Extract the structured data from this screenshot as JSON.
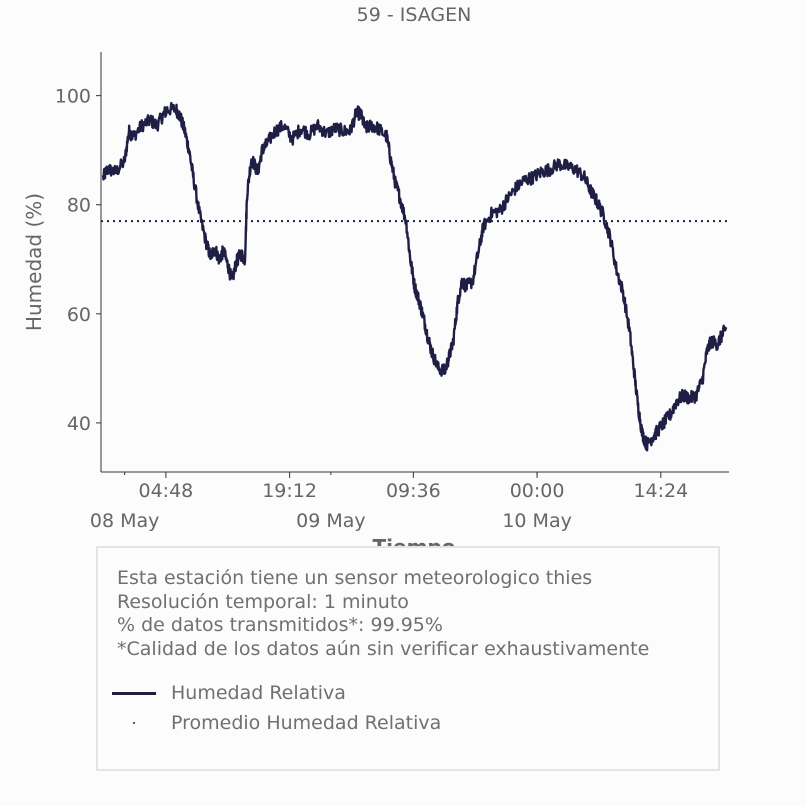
{
  "chart_data": {
    "type": "line",
    "title": "59 - ISAGEN",
    "xlabel": "Tiempo",
    "ylabel": "Humedad (%)",
    "xlim": [
      "2024-05-08T00:00",
      "2024-05-10T23:59"
    ],
    "ylim": [
      31,
      108
    ],
    "grid": false,
    "x_ticks": [
      {
        "t": "2024-05-08T04:48",
        "label": "04:48"
      },
      {
        "t": "2024-05-08T19:12",
        "label": "19:12"
      },
      {
        "t": "2024-05-09T09:36",
        "label": "09:36"
      },
      {
        "t": "2024-05-10T00:00",
        "label": "00:00"
      },
      {
        "t": "2024-05-10T14:24",
        "label": "14:24"
      }
    ],
    "date_labels": [
      {
        "t": "2024-05-08T00:00",
        "label": "08 May"
      },
      {
        "t": "2024-05-09T00:00",
        "label": "09 May"
      },
      {
        "t": "2024-05-10T00:00",
        "label": "10 May"
      }
    ],
    "y_ticks": [
      40,
      60,
      80,
      100
    ],
    "series": [
      {
        "name": "Humedad Relativa",
        "color": "#1f1f45",
        "style": "solid",
        "points": [
          [
            "2024-05-07T21:30",
            85
          ],
          [
            "2024-05-07T22:00",
            86.5
          ],
          [
            "2024-05-07T23:00",
            86
          ],
          [
            "2024-05-08T00:00",
            88
          ],
          [
            "2024-05-08T00:30",
            93.5
          ],
          [
            "2024-05-08T01:00",
            92.5
          ],
          [
            "2024-05-08T02:00",
            94.5
          ],
          [
            "2024-05-08T03:00",
            95.5
          ],
          [
            "2024-05-08T03:45",
            94.5
          ],
          [
            "2024-05-08T04:30",
            96.5
          ],
          [
            "2024-05-08T05:00",
            97.5
          ],
          [
            "2024-05-08T06:00",
            97.5
          ],
          [
            "2024-05-08T06:30",
            96
          ],
          [
            "2024-05-08T07:00",
            93.5
          ],
          [
            "2024-05-08T07:30",
            90
          ],
          [
            "2024-05-08T08:00",
            85
          ],
          [
            "2024-05-08T08:45",
            78
          ],
          [
            "2024-05-08T09:30",
            73
          ],
          [
            "2024-05-08T10:00",
            70.5
          ],
          [
            "2024-05-08T10:30",
            72
          ],
          [
            "2024-05-08T11:00",
            70
          ],
          [
            "2024-05-08T11:30",
            71.5
          ],
          [
            "2024-05-08T12:00",
            69
          ],
          [
            "2024-05-08T12:30",
            66
          ],
          [
            "2024-05-08T13:00",
            69.5
          ],
          [
            "2024-05-08T13:30",
            71
          ],
          [
            "2024-05-08T14:00",
            70
          ],
          [
            "2024-05-08T14:15",
            82
          ],
          [
            "2024-05-08T14:45",
            88.5
          ],
          [
            "2024-05-08T15:30",
            86
          ],
          [
            "2024-05-08T16:00",
            90
          ],
          [
            "2024-05-08T16:30",
            91
          ],
          [
            "2024-05-08T17:30",
            93.5
          ],
          [
            "2024-05-08T18:30",
            94.5
          ],
          [
            "2024-05-08T19:30",
            92
          ],
          [
            "2024-05-08T20:30",
            94
          ],
          [
            "2024-05-08T21:30",
            93
          ],
          [
            "2024-05-08T22:30",
            94.5
          ],
          [
            "2024-05-08T23:30",
            93
          ],
          [
            "2024-05-09T00:30",
            94
          ],
          [
            "2024-05-09T01:30",
            93.5
          ],
          [
            "2024-05-09T02:15",
            93.5
          ],
          [
            "2024-05-09T03:00",
            97
          ],
          [
            "2024-05-09T03:30",
            96.5
          ],
          [
            "2024-05-09T04:00",
            94
          ],
          [
            "2024-05-09T04:45",
            94.5
          ],
          [
            "2024-05-09T05:30",
            94
          ],
          [
            "2024-05-09T06:30",
            92.5
          ],
          [
            "2024-05-09T07:00",
            88
          ],
          [
            "2024-05-09T07:30",
            84
          ],
          [
            "2024-05-09T08:00",
            81.5
          ],
          [
            "2024-05-09T08:45",
            77
          ],
          [
            "2024-05-09T09:15",
            70
          ],
          [
            "2024-05-09T09:45",
            65
          ],
          [
            "2024-05-09T10:15",
            62.5
          ],
          [
            "2024-05-09T10:45",
            59.5
          ],
          [
            "2024-05-09T11:15",
            56
          ],
          [
            "2024-05-09T11:45",
            53
          ],
          [
            "2024-05-09T12:30",
            50
          ],
          [
            "2024-05-09T13:15",
            49.5
          ],
          [
            "2024-05-09T13:45",
            52
          ],
          [
            "2024-05-09T14:15",
            55
          ],
          [
            "2024-05-09T14:45",
            62
          ],
          [
            "2024-05-09T15:15",
            66
          ],
          [
            "2024-05-09T15:45",
            65
          ],
          [
            "2024-05-09T16:30",
            66
          ],
          [
            "2024-05-09T17:15",
            72
          ],
          [
            "2024-05-09T17:45",
            76
          ],
          [
            "2024-05-09T18:45",
            78.5
          ],
          [
            "2024-05-09T19:45",
            79
          ],
          [
            "2024-05-09T20:30",
            81
          ],
          [
            "2024-05-09T21:30",
            83
          ],
          [
            "2024-05-09T22:30",
            84.5
          ],
          [
            "2024-05-09T23:30",
            85
          ],
          [
            "2024-05-10T00:30",
            86
          ],
          [
            "2024-05-10T01:30",
            86.5
          ],
          [
            "2024-05-10T02:30",
            87.5
          ],
          [
            "2024-05-10T03:30",
            87
          ],
          [
            "2024-05-10T04:30",
            86.5
          ],
          [
            "2024-05-10T05:30",
            85
          ],
          [
            "2024-05-10T06:15",
            82.5
          ],
          [
            "2024-05-10T07:00",
            80.5
          ],
          [
            "2024-05-10T07:45",
            78
          ],
          [
            "2024-05-10T08:30",
            74
          ],
          [
            "2024-05-10T09:15",
            68
          ],
          [
            "2024-05-10T10:00",
            64
          ],
          [
            "2024-05-10T10:45",
            57
          ],
          [
            "2024-05-10T11:15",
            50
          ],
          [
            "2024-05-10T11:45",
            43
          ],
          [
            "2024-05-10T12:15",
            38
          ],
          [
            "2024-05-10T12:45",
            36
          ],
          [
            "2024-05-10T13:30",
            37.5
          ],
          [
            "2024-05-10T14:00",
            38.5
          ],
          [
            "2024-05-10T14:45",
            40
          ],
          [
            "2024-05-10T15:30",
            41.5
          ],
          [
            "2024-05-10T16:15",
            44
          ],
          [
            "2024-05-10T17:00",
            45
          ],
          [
            "2024-05-10T17:45",
            44.5
          ],
          [
            "2024-05-10T18:30",
            45
          ],
          [
            "2024-05-10T19:15",
            48
          ],
          [
            "2024-05-10T19:45",
            53
          ],
          [
            "2024-05-10T20:15",
            55
          ],
          [
            "2024-05-10T21:00",
            54.5
          ],
          [
            "2024-05-10T21:30",
            56
          ],
          [
            "2024-05-10T22:00",
            57.5
          ]
        ]
      },
      {
        "name": "Promedio Humedad Relativa",
        "color": "#1f1f45",
        "style": "dotted",
        "value": 77
      }
    ]
  },
  "info_box": {
    "line1": "Esta estación tiene un sensor meteorologico thies",
    "line2": "Resolución temporal: 1 minuto",
    "line3": "% de datos transmitidos*: 99.95%",
    "line4": "*Calidad de los datos aún sin verificar exhaustivamente"
  }
}
